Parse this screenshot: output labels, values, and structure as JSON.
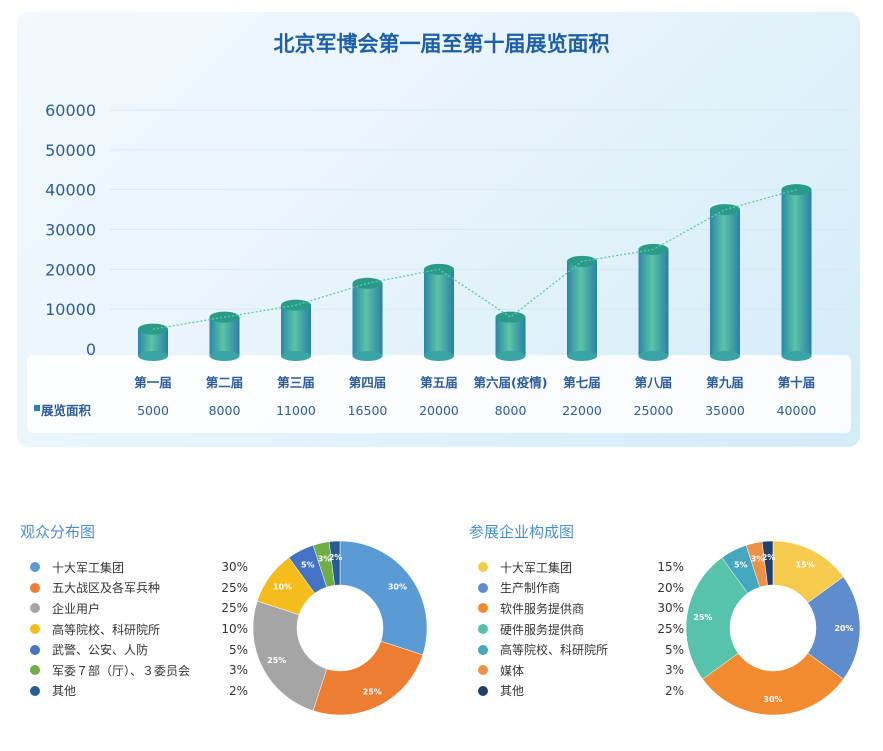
{
  "chart_data": [
    {
      "type": "bar",
      "title": "北京军博会第一届至第十届展览面积",
      "categories": [
        "第一届",
        "第二届",
        "第三届",
        "第四届",
        "第五届",
        "第六届(疫情)",
        "第七届",
        "第八届",
        "第九届",
        "第十届"
      ],
      "series": [
        {
          "name": "展览面积",
          "values": [
            5000,
            8000,
            11000,
            16500,
            20000,
            8000,
            22000,
            25000,
            35000,
            40000
          ]
        }
      ],
      "ylim": [
        0,
        60000
      ],
      "yticks": [
        "0",
        "10000",
        "20000",
        "30000",
        "40000",
        "50000",
        "60000"
      ],
      "grid": true,
      "trend_line": "dotted",
      "colors": {
        "bar": "#2aa89a",
        "line": "#5ccf9a"
      }
    },
    {
      "type": "pie",
      "title": "观众分布图",
      "labels": [
        "十大军工集团",
        "五大战区及各军兵种",
        "企业用户",
        "高等院校、科研院所",
        "武警、公安、人防",
        "军委７部（厅）、３委员会",
        "其他"
      ],
      "values": [
        30,
        25,
        25,
        10,
        5,
        3,
        2
      ],
      "value_labels": [
        "30%",
        "25%",
        "25%",
        "10%",
        "5%",
        "3%",
        "2%"
      ],
      "colors": [
        "#5b9bd5",
        "#ed7d31",
        "#a5a5a5",
        "#f4bd1b",
        "#4472c4",
        "#70ad47",
        "#255e91"
      ],
      "donut": true
    },
    {
      "type": "pie",
      "title": "参展企业构成图",
      "labels": [
        "十大军工集团",
        "生产制作商",
        "软件服务提供商",
        "硬件服务提供商",
        "高等院校、科研院所",
        "媒体",
        "其他"
      ],
      "values": [
        15,
        20,
        30,
        25,
        5,
        3,
        2
      ],
      "value_labels": [
        "15%",
        "20%",
        "30%",
        "25%",
        "5%",
        "3%",
        "2%"
      ],
      "colors": [
        "#f6ca4c",
        "#5f8ccc",
        "#f28b30",
        "#56c3aa",
        "#45a6c0",
        "#ee9146",
        "#22406a"
      ],
      "donut": true
    }
  ]
}
